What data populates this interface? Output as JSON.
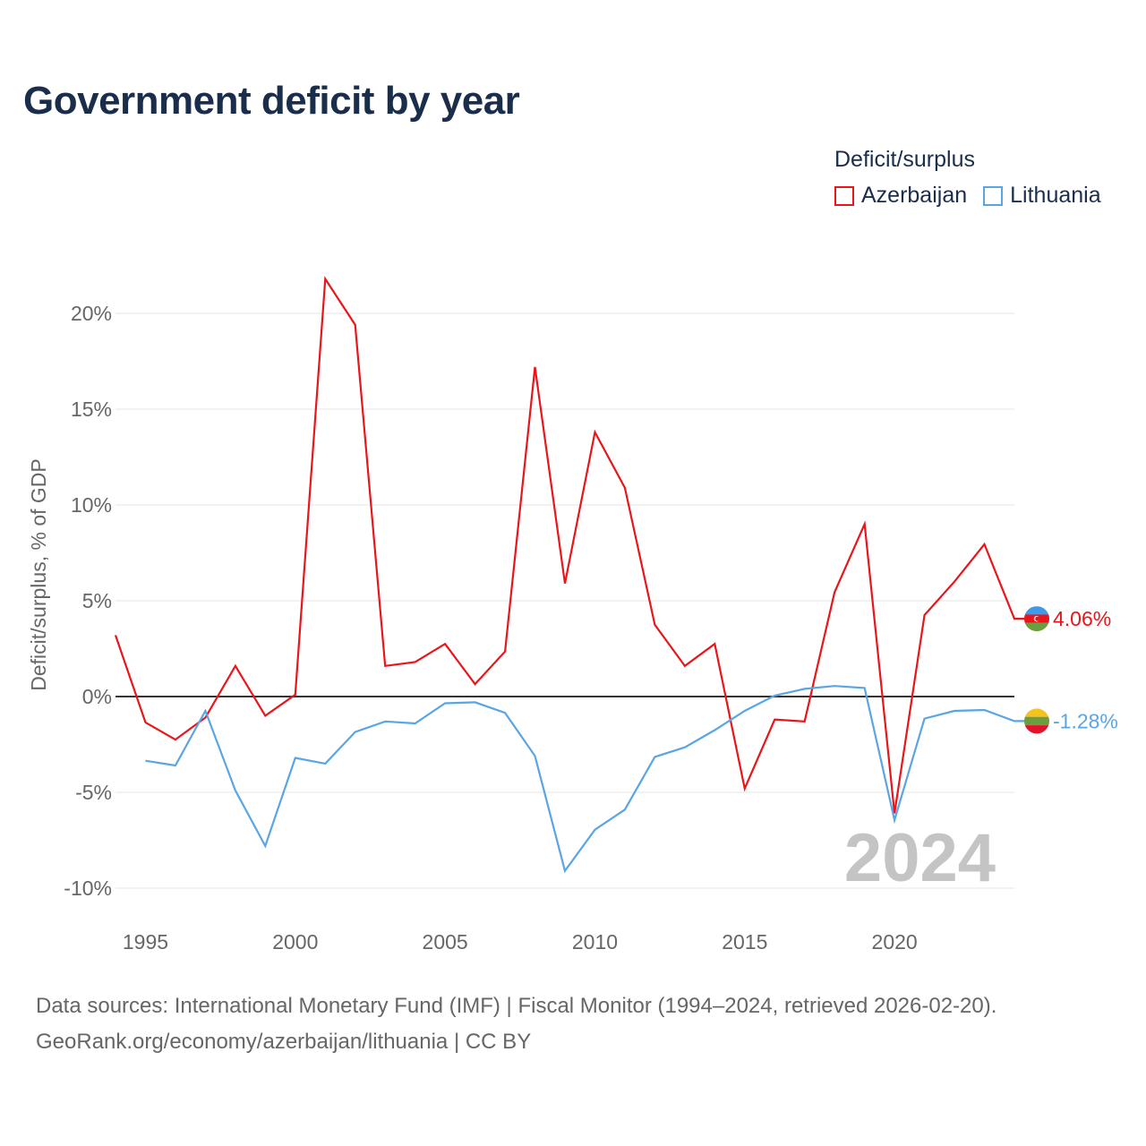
{
  "title": "Government deficit by year",
  "legend": {
    "title": "Deficit/surplus",
    "items": [
      {
        "label": "Azerbaijan",
        "color": "#e8161b"
      },
      {
        "label": "Lithuania",
        "color": "#5aa5e3"
      }
    ]
  },
  "footer": {
    "line1": "Data sources: International Monetary Fund (IMF) | Fiscal Monitor (1994–2024, retrieved 2026-02-20).",
    "line2": "GeoRank.org/economy/azerbaijan/lithuania | CC BY"
  },
  "chart_data": {
    "type": "line",
    "title": "Government deficit by year",
    "xlabel": "",
    "ylabel": "Deficit/surplus, % of GDP",
    "xlim": [
      1994,
      2024
    ],
    "ylim": [
      -10,
      20
    ],
    "y_ticks": [
      -10,
      -5,
      0,
      5,
      10,
      15,
      20
    ],
    "y_tick_labels": [
      "-10%",
      "-5%",
      "0%",
      "5%",
      "10%",
      "15%",
      "20%"
    ],
    "x_ticks": [
      1995,
      2000,
      2005,
      2010,
      2015,
      2020
    ],
    "x_tick_labels": [
      "1995",
      "2000",
      "2005",
      "2010",
      "2015",
      "2020"
    ],
    "grid": true,
    "year_watermark": "2024",
    "series": [
      {
        "name": "Azerbaijan",
        "color": "#e8161b",
        "end_label": "4.06%",
        "x": [
          1994,
          1995,
          1996,
          1997,
          1998,
          1999,
          2000,
          2001,
          2002,
          2003,
          2004,
          2005,
          2006,
          2007,
          2008,
          2009,
          2010,
          2011,
          2012,
          2013,
          2014,
          2015,
          2016,
          2017,
          2018,
          2019,
          2020,
          2021,
          2022,
          2023,
          2024
        ],
        "y": [
          3.2,
          -1.35,
          -2.25,
          -1.1,
          1.6,
          -1.0,
          0.1,
          21.8,
          19.4,
          1.6,
          1.8,
          2.75,
          0.65,
          2.35,
          17.2,
          5.9,
          13.8,
          10.9,
          3.75,
          1.6,
          2.75,
          -4.8,
          -1.2,
          -1.3,
          5.45,
          9.0,
          -6.1,
          4.25,
          6.0,
          7.95,
          4.06
        ]
      },
      {
        "name": "Lithuania",
        "color": "#5aa5e3",
        "end_label": "-1.28%",
        "x": [
          1995,
          1996,
          1997,
          1998,
          1999,
          2000,
          2001,
          2002,
          2003,
          2004,
          2005,
          2006,
          2007,
          2008,
          2009,
          2010,
          2011,
          2012,
          2013,
          2014,
          2015,
          2016,
          2017,
          2018,
          2019,
          2020,
          2021,
          2022,
          2023,
          2024
        ],
        "y": [
          -3.35,
          -3.6,
          -0.75,
          -4.9,
          -7.8,
          -3.2,
          -3.5,
          -1.85,
          -1.3,
          -1.4,
          -0.35,
          -0.3,
          -0.85,
          -3.1,
          -9.1,
          -6.95,
          -5.9,
          -3.15,
          -2.65,
          -1.75,
          -0.75,
          0.05,
          0.4,
          0.55,
          0.45,
          -6.45,
          -1.15,
          -0.75,
          -0.7,
          -1.28
        ]
      }
    ]
  }
}
